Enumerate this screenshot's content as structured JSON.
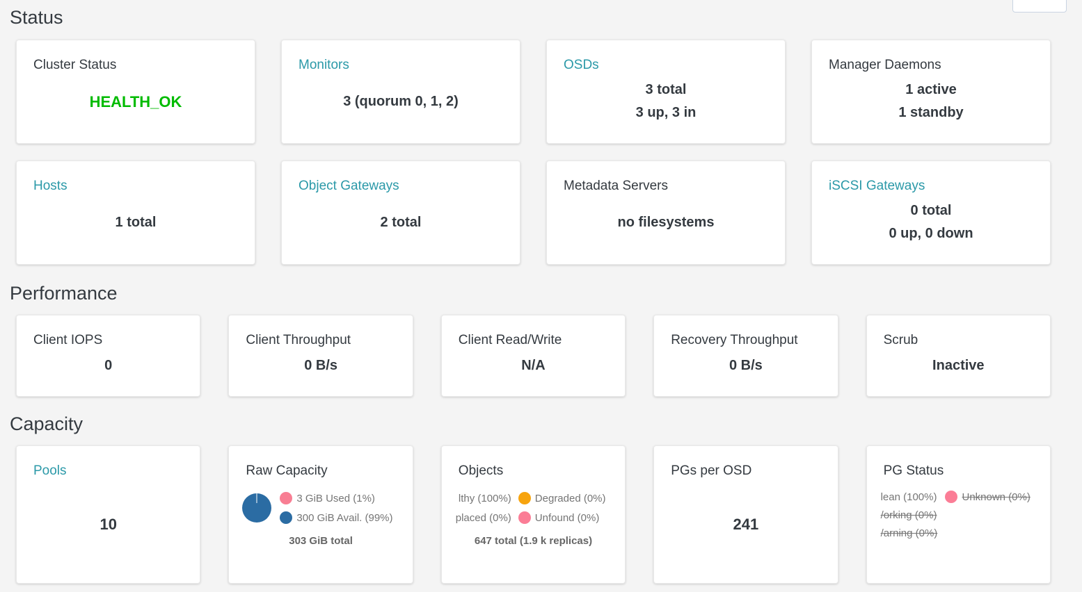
{
  "colors": {
    "page_background": "#f4f4f4",
    "link_teal": "#2b99a8",
    "health_ok_green": "#00bb00",
    "text_dark": "#343a40",
    "legend_text_gray": "#757575",
    "pie_blue": "#2b6ca3",
    "used_pink": "#f87e93",
    "degraded_orange": "#f7a40e",
    "unfound_pink": "#fb7d96"
  },
  "status": {
    "heading": "Status",
    "cards": [
      {
        "title": "Cluster Status",
        "link": false,
        "health": true,
        "values": [
          "HEALTH_OK"
        ]
      },
      {
        "title": "Monitors",
        "link": true,
        "values": [
          "3 (quorum 0, 1, 2)"
        ]
      },
      {
        "title": "OSDs",
        "link": true,
        "values": [
          "3 total",
          "3 up, 3 in"
        ]
      },
      {
        "title": "Manager Daemons",
        "link": false,
        "values": [
          "1 active",
          "1 standby"
        ]
      },
      {
        "title": "Hosts",
        "link": true,
        "values": [
          "1 total"
        ]
      },
      {
        "title": "Object Gateways",
        "link": true,
        "values": [
          "2 total"
        ]
      },
      {
        "title": "Metadata Servers",
        "link": false,
        "values": [
          "no filesystems"
        ]
      },
      {
        "title": "iSCSI Gateways",
        "link": true,
        "values": [
          "0 total",
          "0 up, 0 down"
        ]
      }
    ]
  },
  "performance": {
    "heading": "Performance",
    "cards": [
      {
        "title": "Client IOPS",
        "link": false,
        "values": [
          "0"
        ]
      },
      {
        "title": "Client Throughput",
        "link": false,
        "values": [
          "0 B/s"
        ]
      },
      {
        "title": "Client Read/Write",
        "link": false,
        "values": [
          "N/A"
        ]
      },
      {
        "title": "Recovery Throughput",
        "link": false,
        "values": [
          "0 B/s"
        ]
      },
      {
        "title": "Scrub",
        "link": false,
        "values": [
          "Inactive"
        ]
      }
    ]
  },
  "capacity": {
    "heading": "Capacity",
    "pools": {
      "title": "Pools",
      "value": "10"
    },
    "raw_capacity": {
      "title": "Raw Capacity",
      "pie": {
        "type": "pie",
        "labels": [
          "Used",
          "Avail."
        ],
        "values": [
          1,
          99
        ]
      },
      "legend": [
        {
          "label": "3 GiB Used (1%)"
        },
        {
          "label": "300 GiB Avail. (99%)"
        }
      ],
      "total": "303 GiB total"
    },
    "objects": {
      "title": "Objects",
      "legend": [
        {
          "label": "lthy (100%)"
        },
        {
          "label": "Degraded (0%)"
        },
        {
          "label": "placed (0%)"
        },
        {
          "label": "Unfound (0%)"
        }
      ],
      "total": "647 total (1.9 k replicas)"
    },
    "pgs_per_osd": {
      "title": "PGs per OSD",
      "value": "241"
    },
    "pg_status": {
      "title": "PG Status",
      "rows": [
        {
          "label_left": "lean (100%)",
          "label_right": "Unknown (0%)"
        },
        {
          "label": "/orking (0%)"
        },
        {
          "label": "/arning (0%)"
        }
      ]
    }
  }
}
